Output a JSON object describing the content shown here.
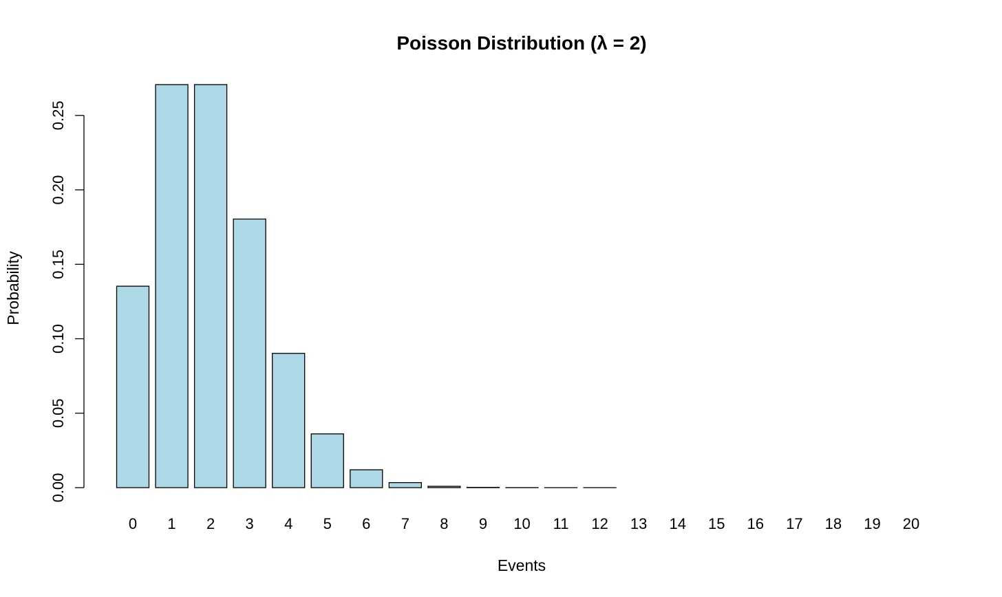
{
  "chart_data": {
    "type": "bar",
    "title": "Poisson Distribution (λ = 2)",
    "xlabel": "Events",
    "ylabel": "Probability",
    "categories": [
      "0",
      "1",
      "2",
      "3",
      "4",
      "5",
      "6",
      "7",
      "8",
      "9",
      "10",
      "11",
      "12",
      "13",
      "14",
      "15",
      "16",
      "17",
      "18",
      "19",
      "20"
    ],
    "values": [
      0.1353,
      0.2707,
      0.2707,
      0.1804,
      0.0902,
      0.0361,
      0.012,
      0.0034,
      0.0009,
      0.0002,
      4e-05,
      7e-06,
      1e-06,
      0,
      0,
      0,
      0,
      0,
      0,
      0,
      0
    ],
    "y_ticks": [
      "0.00",
      "0.05",
      "0.10",
      "0.15",
      "0.20",
      "0.25"
    ],
    "y_tick_values": [
      0,
      0.05,
      0.1,
      0.15,
      0.2,
      0.25
    ],
    "ylim": [
      0,
      0.2707
    ],
    "grid": false,
    "bar_color": "#ADD8E6",
    "bar_border_color": "#000000"
  }
}
